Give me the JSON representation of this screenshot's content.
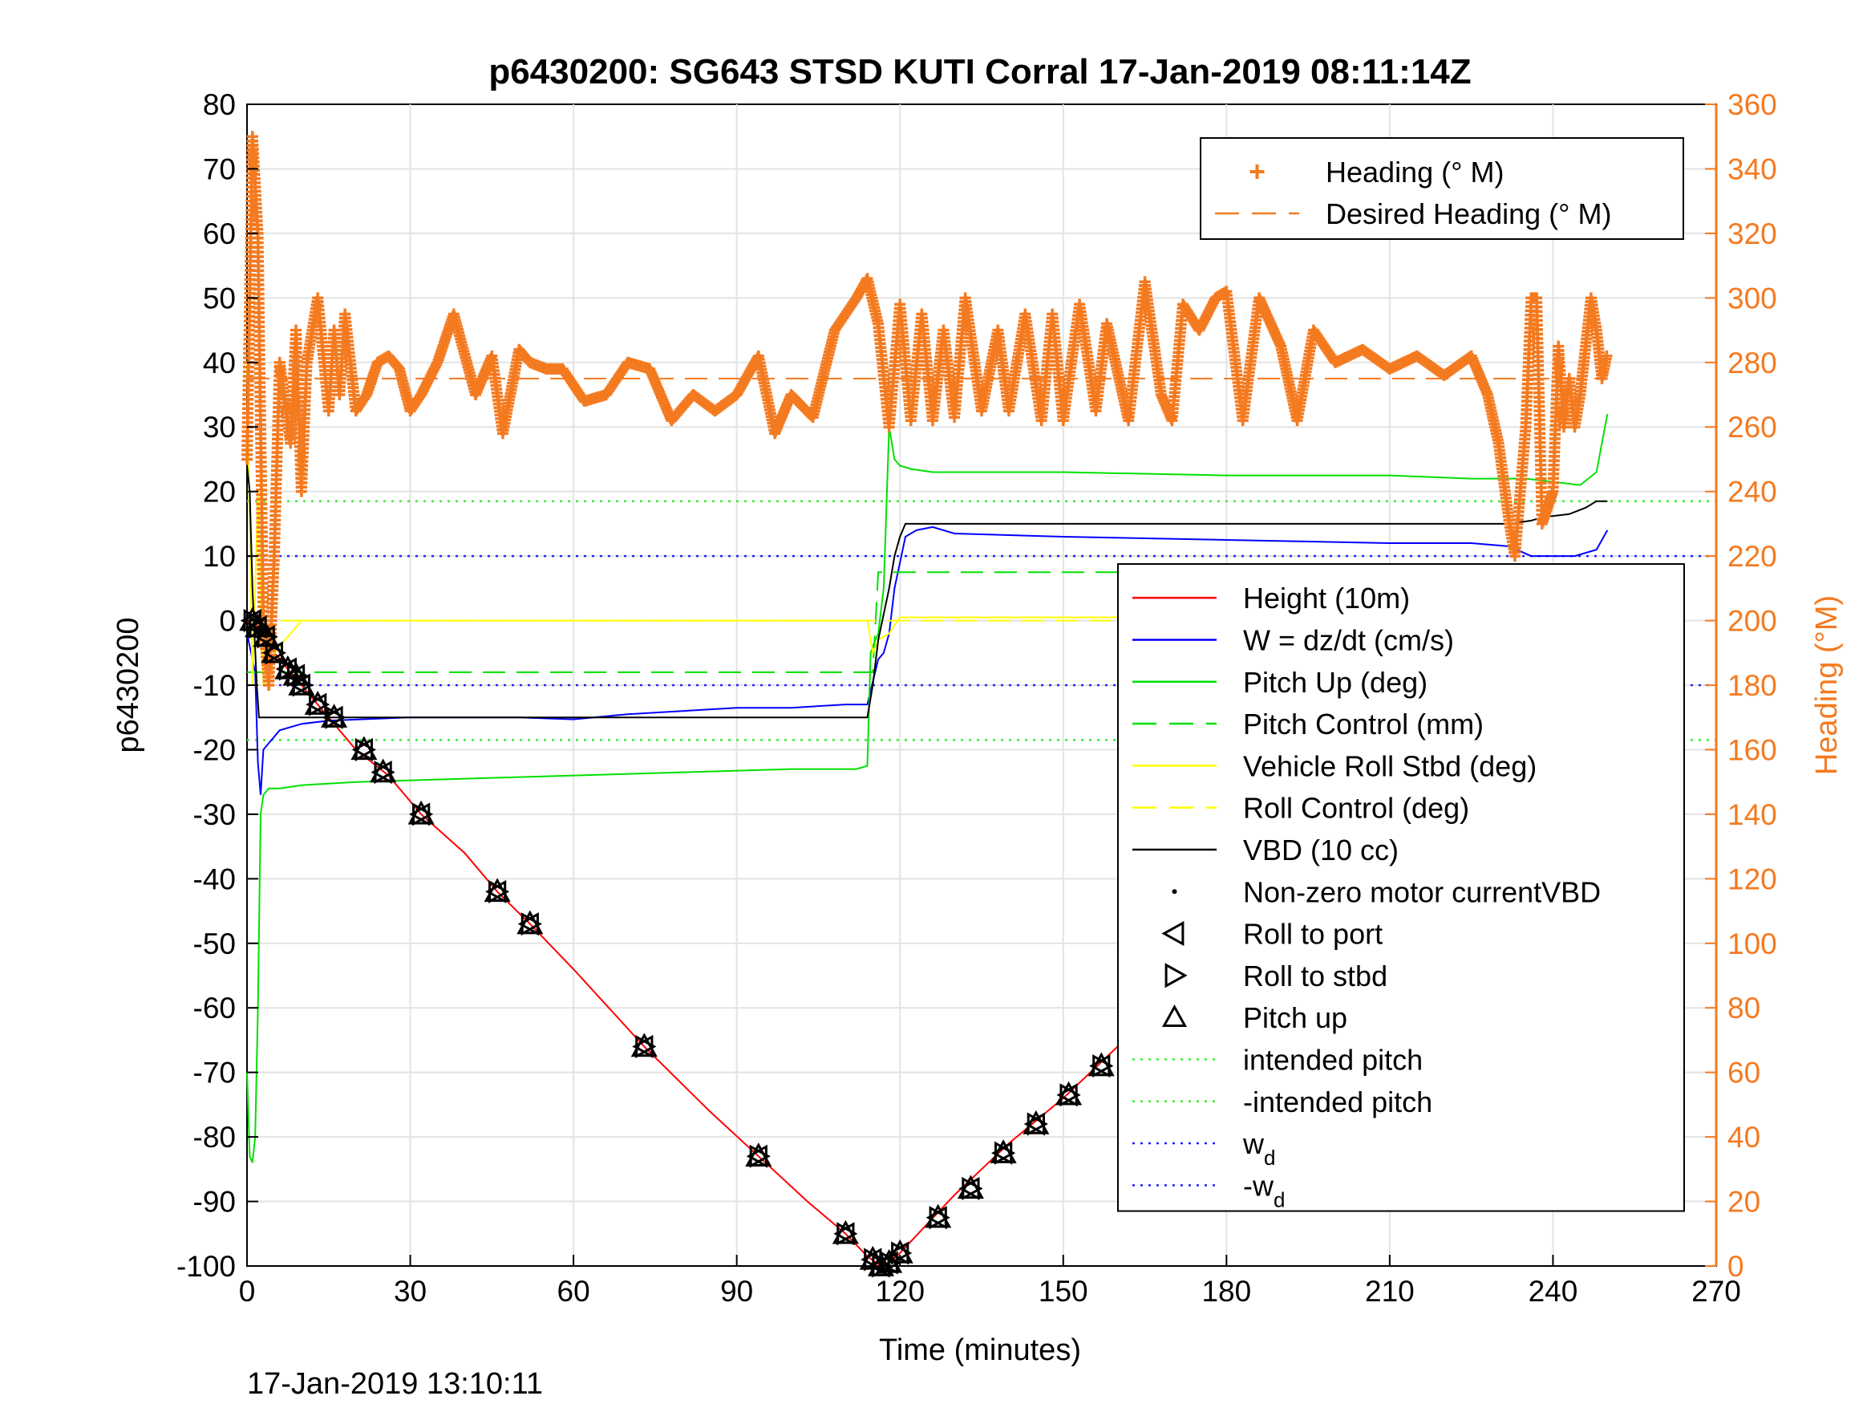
{
  "chart_data": {
    "type": "line",
    "title": "p6430200: SG643 STSD KUTI Corral 17-Jan-2019 08:11:14Z",
    "xlabel": "Time (minutes)",
    "ylabel": "p6430200",
    "y2label": "Heading (°M)",
    "footer": "17-Jan-2019 13:10:11",
    "xlim": [
      0,
      270
    ],
    "ylim": [
      -100,
      80
    ],
    "y2lim": [
      0,
      360
    ],
    "xticks": [
      0,
      30,
      60,
      90,
      120,
      150,
      180,
      210,
      240,
      270
    ],
    "yticks": [
      80,
      70,
      60,
      50,
      40,
      30,
      20,
      10,
      0,
      -10,
      -20,
      -30,
      -40,
      -50,
      -60,
      -70,
      -80,
      -90,
      -100
    ],
    "y2ticks": [
      360,
      340,
      320,
      300,
      280,
      260,
      240,
      220,
      200,
      180,
      160,
      140,
      120,
      100,
      80,
      60,
      40,
      20,
      0
    ],
    "grid": true,
    "colors": {
      "heading": "#f47a20",
      "height": "#ff0000",
      "w": "#0000ff",
      "pitch": "#00e000",
      "roll": "#ffff00",
      "vbd": "#000000",
      "intended": "#33ee33",
      "wd": "#2222ff"
    },
    "legend_top": {
      "placement": "top-right",
      "entries": [
        {
          "label": "Heading (° M)",
          "style": "plus",
          "color": "#f47a20"
        },
        {
          "label": "Desired Heading (° M)",
          "style": "dash",
          "color": "#f47a20"
        }
      ]
    },
    "legend_main": {
      "placement": "right",
      "entries": [
        {
          "label": "Height (10m)",
          "style": "solid",
          "color": "#ff0000"
        },
        {
          "label": "W = dz/dt (cm/s)",
          "style": "solid",
          "color": "#0000ff"
        },
        {
          "label": "Pitch Up (deg)",
          "style": "solid",
          "color": "#00e000"
        },
        {
          "label": "Pitch Control (mm)",
          "style": "dash",
          "color": "#00e000"
        },
        {
          "label": "Vehicle Roll Stbd (deg)",
          "style": "solid",
          "color": "#ffff00"
        },
        {
          "label": "Roll Control (deg)",
          "style": "dash",
          "color": "#ffff00"
        },
        {
          "label": "VBD (10 cc)",
          "style": "solid",
          "color": "#000000"
        },
        {
          "label": "Non-zero motor currentVBD",
          "style": "dot",
          "color": "#000000"
        },
        {
          "label": "Roll to port",
          "style": "tri-left",
          "color": "#000000"
        },
        {
          "label": "Roll to stbd",
          "style": "tri-right",
          "color": "#000000"
        },
        {
          "label": "Pitch up",
          "style": "tri-up",
          "color": "#000000"
        },
        {
          "label": "intended pitch",
          "style": "dotted",
          "color": "#33ee33"
        },
        {
          "label": "-intended pitch",
          "style": "dotted",
          "color": "#33ee33"
        },
        {
          "label": "w",
          "sub": "d",
          "style": "dotted",
          "color": "#2222ff"
        },
        {
          "label": "-w",
          "sub": "d",
          "style": "dotted",
          "color": "#2222ff"
        }
      ]
    },
    "series": [
      {
        "name": "Height (10m)",
        "axis": "left",
        "x": [
          0,
          2,
          5,
          10,
          15,
          20,
          26,
          32,
          40,
          46,
          52,
          60,
          73,
          85,
          94,
          103,
          110,
          114,
          116.5,
          118,
          120,
          125,
          130,
          140,
          150,
          160,
          170,
          180,
          192,
          203,
          215,
          222,
          230,
          238,
          245,
          250
        ],
        "y": [
          0,
          -1,
          -5,
          -10,
          -15,
          -20,
          -24,
          -30,
          -36,
          -42,
          -47,
          -54,
          -66,
          -76,
          -83,
          -90,
          -95,
          -98.5,
          -100,
          -99.5,
          -98,
          -93.5,
          -89,
          -81,
          -74,
          -66,
          -59,
          -51.5,
          -42,
          -34,
          -24.5,
          -18,
          -12,
          -6,
          -2,
          0
        ]
      },
      {
        "name": "W = dz/dt (cm/s)",
        "axis": "left",
        "x": [
          0,
          1.5,
          2,
          2.5,
          3,
          4,
          6,
          10,
          15,
          30,
          50,
          60,
          70,
          80,
          90,
          100,
          110,
          114,
          116,
          117,
          118,
          119,
          120,
          121,
          123,
          126,
          130,
          150,
          180,
          210,
          225,
          232,
          236,
          240,
          244,
          248,
          250
        ],
        "y": [
          -2,
          -8,
          -22,
          -27,
          -20,
          -19,
          -17,
          -16,
          -15.5,
          -15,
          -15,
          -15.3,
          -14.5,
          -14,
          -13.5,
          -13.5,
          -13,
          -13,
          -6,
          -5,
          -2,
          5,
          9,
          13,
          14,
          14.5,
          13.5,
          13,
          12.5,
          12,
          12,
          11.5,
          10,
          10,
          10,
          11,
          14
        ]
      },
      {
        "name": "Pitch Up (deg)",
        "axis": "left",
        "x": [
          0,
          0.5,
          1,
          1.5,
          2,
          2.5,
          3,
          4,
          6,
          10,
          20,
          40,
          60,
          80,
          100,
          112,
          114,
          114.6,
          115,
          115.5,
          116,
          117,
          118,
          119,
          120,
          122,
          126,
          150,
          180,
          210,
          225,
          235,
          240,
          245,
          248,
          250
        ],
        "y": [
          -70,
          -83,
          -84,
          -80,
          -60,
          -30,
          -27,
          -26,
          -26,
          -25.5,
          -25,
          -24.5,
          -24,
          -23.5,
          -23,
          -23,
          -22.5,
          -5,
          -4,
          -3,
          -2,
          5,
          30,
          25,
          24,
          23.5,
          23,
          23,
          22.5,
          22.5,
          22,
          22,
          21.5,
          21,
          23,
          32
        ]
      },
      {
        "name": "Pitch Control (mm)",
        "axis": "left",
        "x": [
          0,
          2,
          2.5,
          115,
          116,
          250
        ],
        "y": [
          -8,
          -8,
          -8,
          -8,
          7.5,
          7.5
        ]
      },
      {
        "name": "Vehicle Roll Stbd (deg)",
        "axis": "left",
        "x": [
          0,
          1,
          2,
          3,
          5,
          10,
          20,
          40,
          60,
          80,
          100,
          114,
          115,
          116,
          118,
          120,
          130,
          150,
          170,
          190,
          210,
          230,
          250
        ],
        "y": [
          40,
          -10,
          20,
          -10,
          -5,
          0,
          0,
          0,
          0,
          0,
          0,
          0,
          -5,
          -3,
          -2,
          0.5,
          0.5,
          0.5,
          0.5,
          0.5,
          0.5,
          0.5,
          0.5
        ]
      },
      {
        "name": "Roll Control (deg)",
        "axis": "left",
        "x": [
          0,
          250
        ],
        "y": [
          0,
          0
        ]
      },
      {
        "name": "VBD (10 cc)",
        "axis": "left",
        "x": [
          0,
          0.5,
          1,
          1.8,
          2.2,
          3,
          50,
          114,
          115,
          116,
          118,
          119,
          120,
          121,
          130,
          232,
          236,
          238,
          243,
          246,
          248,
          250
        ],
        "y": [
          24,
          20,
          5,
          -10,
          -15,
          -15,
          -15,
          -15,
          -10,
          -3,
          5,
          10,
          13,
          15,
          15,
          15,
          15.5,
          16,
          16.5,
          17.5,
          18.5,
          18.5
        ]
      },
      {
        "name": "Heading (° M)",
        "axis": "right",
        "x": [
          0,
          1,
          2,
          3,
          4,
          5,
          6,
          8,
          9,
          10,
          11,
          12,
          13,
          15,
          16,
          17,
          18,
          20,
          22,
          24,
          26,
          28,
          30,
          32,
          35,
          38,
          42,
          45,
          47,
          50,
          52,
          55,
          58,
          62,
          66,
          70,
          74,
          78,
          82,
          86,
          90,
          94,
          97,
          100,
          104,
          108,
          112,
          114,
          116,
          118,
          120,
          122,
          124,
          126,
          128,
          130,
          132,
          135,
          138,
          140,
          143,
          146,
          148,
          150,
          153,
          156,
          158,
          162,
          165,
          168,
          170,
          172,
          175,
          178,
          180,
          183,
          186,
          190,
          193,
          196,
          200,
          205,
          210,
          215,
          220,
          225,
          228,
          230,
          232,
          233,
          234,
          235,
          236,
          237,
          238,
          240,
          241,
          242,
          243,
          244,
          245,
          246,
          247,
          248,
          249,
          250
        ],
        "y": [
          250,
          350,
          320,
          200,
          180,
          220,
          280,
          255,
          290,
          240,
          280,
          290,
          300,
          265,
          290,
          270,
          295,
          265,
          270,
          280,
          282,
          278,
          265,
          270,
          280,
          295,
          270,
          282,
          258,
          284,
          280,
          278,
          278,
          268,
          270,
          280,
          278,
          262,
          270,
          265,
          270,
          282,
          258,
          270,
          263,
          290,
          300,
          306,
          292,
          260,
          298,
          262,
          295,
          262,
          290,
          263,
          300,
          265,
          290,
          265,
          295,
          262,
          295,
          262,
          298,
          265,
          292,
          262,
          305,
          270,
          262,
          298,
          290,
          300,
          302,
          262,
          300,
          285,
          262,
          290,
          280,
          284,
          278,
          282,
          276,
          282,
          270,
          255,
          230,
          220,
          240,
          260,
          300,
          300,
          230,
          240,
          285,
          260,
          275,
          260,
          270,
          285,
          300,
          290,
          275,
          283
        ]
      },
      {
        "name": "Desired Heading (° M)",
        "axis": "right",
        "x": [
          0,
          250
        ],
        "y": [
          275,
          275
        ]
      }
    ],
    "reference_lines": [
      {
        "name": "intended pitch",
        "value": 18.5,
        "color": "#33ee33"
      },
      {
        "name": "-intended pitch",
        "value": -18.5,
        "color": "#33ee33"
      },
      {
        "name": "w_d",
        "value": 10,
        "color": "#2222ff"
      },
      {
        "name": "-w_d",
        "value": -10,
        "color": "#2222ff"
      }
    ],
    "markers": {
      "pitch_up": [
        [
          1,
          0
        ],
        [
          2,
          -1
        ],
        [
          3.5,
          -2.5
        ],
        [
          5,
          -5
        ],
        [
          7.5,
          -7.5
        ],
        [
          9,
          -8.5
        ],
        [
          10,
          -10
        ],
        [
          13,
          -13
        ],
        [
          16,
          -15
        ],
        [
          21.5,
          -20
        ],
        [
          25,
          -23.5
        ],
        [
          32,
          -30
        ],
        [
          46,
          -42
        ],
        [
          52,
          -47
        ],
        [
          73,
          -66
        ],
        [
          94,
          -83
        ],
        [
          110,
          -95
        ],
        [
          115,
          -99
        ],
        [
          116.5,
          -100
        ],
        [
          118,
          -99.5
        ],
        [
          120,
          -98
        ],
        [
          127,
          -92.5
        ],
        [
          133,
          -88
        ],
        [
          139,
          -82.5
        ],
        [
          145,
          -78
        ],
        [
          151,
          -73.5
        ],
        [
          157,
          -69
        ],
        [
          163,
          -64
        ],
        [
          169,
          -59.5
        ],
        [
          180.5,
          -51
        ],
        [
          191.5,
          -42
        ],
        [
          203,
          -33.5
        ],
        [
          221,
          -20
        ],
        [
          224,
          -18
        ],
        [
          233,
          -11.5
        ],
        [
          237,
          -8
        ],
        [
          239,
          -7
        ],
        [
          241,
          -6
        ],
        [
          244,
          -4
        ],
        [
          246,
          -3
        ],
        [
          247.5,
          -2.5
        ],
        [
          249,
          -2
        ],
        [
          250,
          -1
        ]
      ]
    }
  }
}
